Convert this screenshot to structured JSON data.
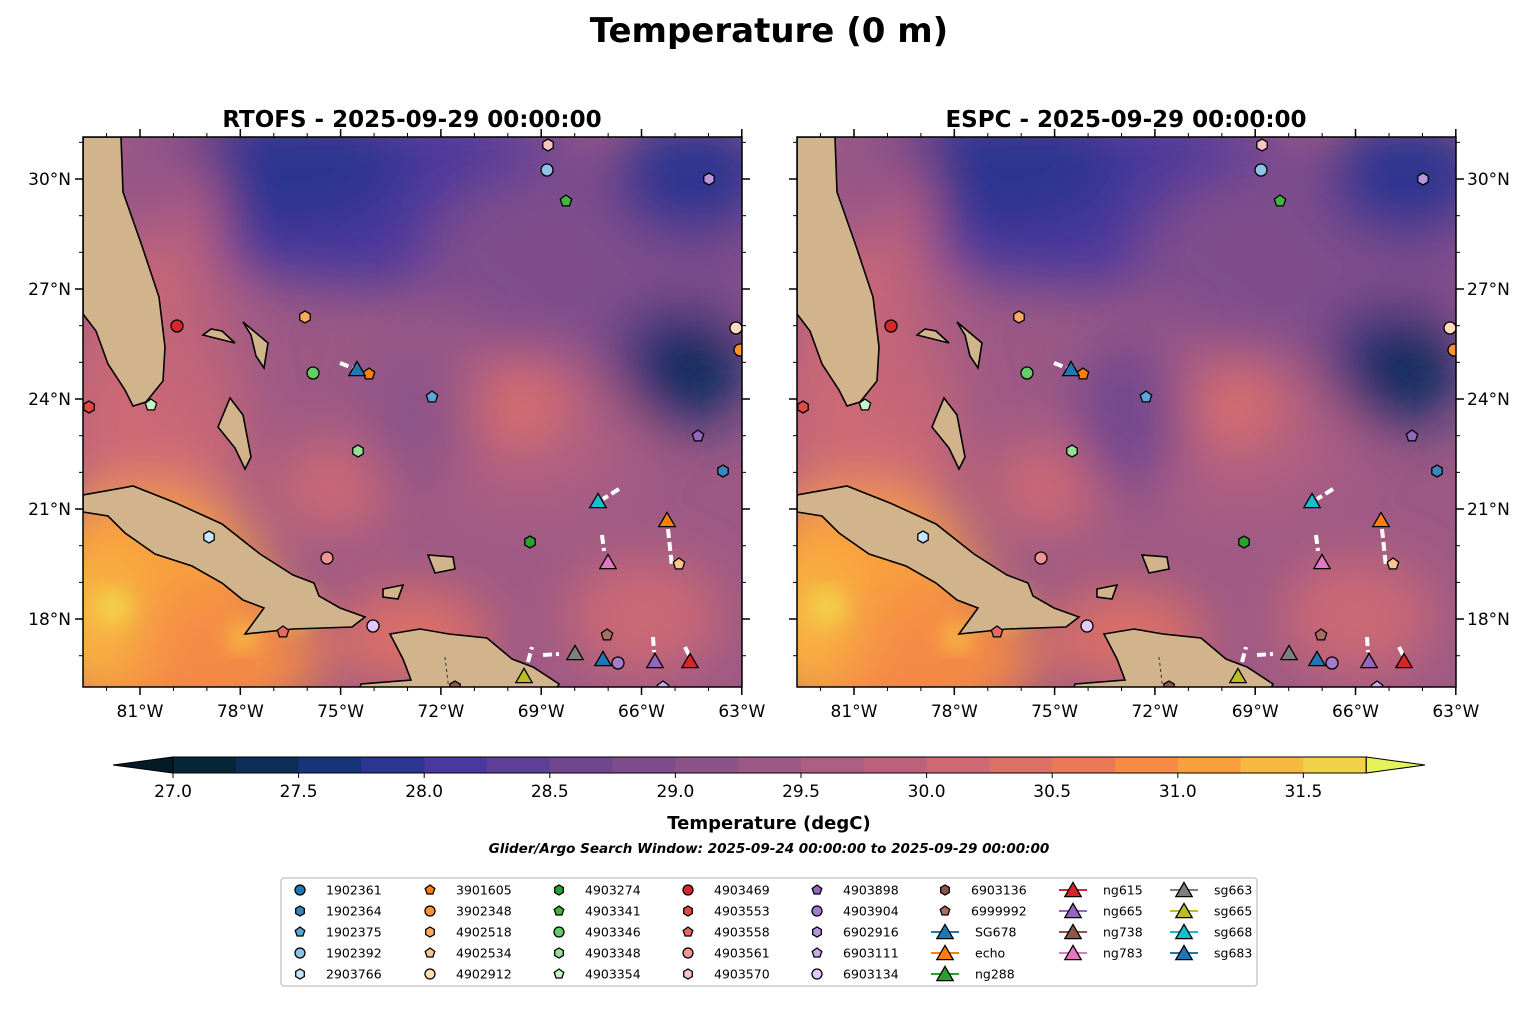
{
  "chart_data": {
    "type": "heatmap",
    "title": "Temperature (0 m)",
    "panels": [
      {
        "title": "RTOFS - 2025-09-29 00:00:00"
      },
      {
        "title": "ESPC - 2025-09-29 00:00:00"
      }
    ],
    "xticks": [
      "81°W",
      "78°W",
      "75°W",
      "72°W",
      "69°W",
      "66°W",
      "63°W"
    ],
    "yticks": [
      "30°N",
      "27°N",
      "24°N",
      "21°N",
      "18°N"
    ],
    "xlim": [
      -82.7,
      -63
    ],
    "ylim": [
      16.15,
      31.15
    ],
    "colorbar": {
      "label": "Temperature (degC)",
      "ticks": [
        "27.0",
        "27.5",
        "28.0",
        "28.5",
        "29.0",
        "29.5",
        "30.0",
        "30.5",
        "31.0",
        "31.5"
      ],
      "range": [
        27.0,
        31.75
      ],
      "step": 0.25,
      "colors": [
        "#062536",
        "#0b2d57",
        "#17337a",
        "#2a3690",
        "#4a389c",
        "#5e3f98",
        "#704690",
        "#7f4d8c",
        "#8c5388",
        "#9c5985",
        "#ad5e82",
        "#bc627c",
        "#cc6974",
        "#dd7066",
        "#ea7a55",
        "#f58b45",
        "#f9a03e",
        "#f7b842",
        "#f2d24a"
      ],
      "under": "#041a26",
      "over": "#e6f25a"
    },
    "subtitle": "Glider/Argo Search Window: 2025-09-24 00:00:00 to 2025-09-29 00:00:00",
    "legend": [
      {
        "label": "1902361",
        "shape": "o",
        "color": "#1f77b4"
      },
      {
        "label": "1902364",
        "shape": "h",
        "color": "#3a86c0"
      },
      {
        "label": "1902375",
        "shape": "p",
        "color": "#5aa6d8"
      },
      {
        "label": "1902392",
        "shape": "o",
        "color": "#8ec3e8"
      },
      {
        "label": "2903766",
        "shape": "h",
        "color": "#c6e6fb"
      },
      {
        "label": "3901605",
        "shape": "p",
        "color": "#ff7f0e"
      },
      {
        "label": "3902348",
        "shape": "o",
        "color": "#ff922e"
      },
      {
        "label": "4902518",
        "shape": "h",
        "color": "#ffaa60"
      },
      {
        "label": "4902534",
        "shape": "p",
        "color": "#ffc38f"
      },
      {
        "label": "4902912",
        "shape": "o",
        "color": "#ffdcbc"
      },
      {
        "label": "4903274",
        "shape": "h",
        "color": "#2ca02c"
      },
      {
        "label": "4903341",
        "shape": "p",
        "color": "#41b541"
      },
      {
        "label": "4903346",
        "shape": "o",
        "color": "#66cc66"
      },
      {
        "label": "4903348",
        "shape": "h",
        "color": "#95e095"
      },
      {
        "label": "4903354",
        "shape": "p",
        "color": "#c4f7c4"
      },
      {
        "label": "4903469",
        "shape": "o",
        "color": "#d62728"
      },
      {
        "label": "4903553",
        "shape": "h",
        "color": "#e04848"
      },
      {
        "label": "4903558",
        "shape": "p",
        "color": "#e86868"
      },
      {
        "label": "4903561",
        "shape": "o",
        "color": "#f09494"
      },
      {
        "label": "4903570",
        "shape": "h",
        "color": "#fbc4c4"
      },
      {
        "label": "4903898",
        "shape": "p",
        "color": "#9467bd"
      },
      {
        "label": "4903904",
        "shape": "o",
        "color": "#a57ccb"
      },
      {
        "label": "6902916",
        "shape": "h",
        "color": "#b996dc"
      },
      {
        "label": "6903111",
        "shape": "p",
        "color": "#ccaaee"
      },
      {
        "label": "6903134",
        "shape": "o",
        "color": "#e2c8fb"
      },
      {
        "label": "6903136",
        "shape": "h",
        "color": "#8c564b"
      },
      {
        "label": "6999992",
        "shape": "p",
        "color": "#a86e62"
      },
      {
        "label": "SG678",
        "shape": "^",
        "color": "#1f77b4"
      },
      {
        "label": "echo",
        "shape": "^",
        "color": "#ff7f0e"
      },
      {
        "label": "ng288",
        "shape": "^",
        "color": "#2ca02c"
      },
      {
        "label": "ng615",
        "shape": "^",
        "color": "#d62728"
      },
      {
        "label": "ng665",
        "shape": "^",
        "color": "#9467bd"
      },
      {
        "label": "ng738",
        "shape": "^",
        "color": "#8c564b"
      },
      {
        "label": "ng783",
        "shape": "^",
        "color": "#e377c2"
      },
      {
        "label": "sg663",
        "shape": "^",
        "color": "#7f7f7f"
      },
      {
        "label": "sg665",
        "shape": "^",
        "color": "#bcbd22"
      },
      {
        "label": "sg668",
        "shape": "^",
        "color": "#17becf"
      },
      {
        "label": "sg683",
        "shape": "^",
        "color": "#1f77b4"
      }
    ]
  }
}
